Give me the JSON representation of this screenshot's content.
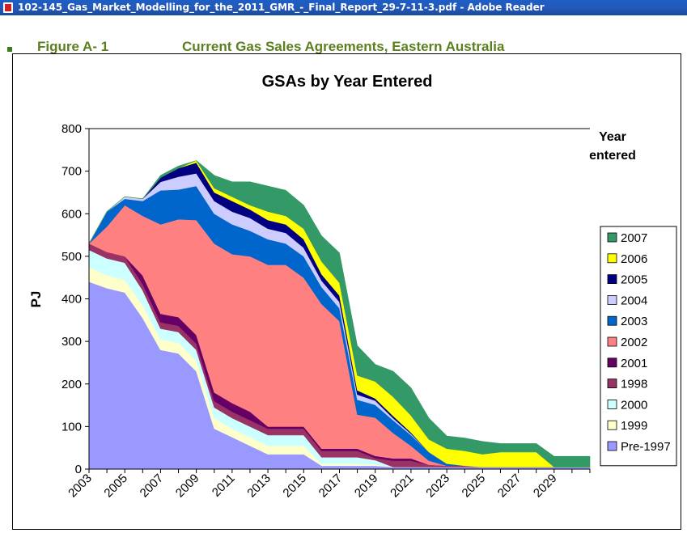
{
  "window": {
    "title": "102-145_Gas_Market_Modelling_for_the_2011_GMR_-_Final_Report_29-7-11-3.pdf - Adobe Reader"
  },
  "document": {
    "figure_label": "Figure A- 1",
    "figure_title": "Current Gas Sales Agreements, Eastern Australia"
  },
  "chart_data": {
    "type": "area",
    "stacked": true,
    "title": "GSAs by Year Entered",
    "ylabel": "PJ",
    "xlabel": "",
    "ylim": [
      0,
      800
    ],
    "yticks": [
      0,
      100,
      200,
      300,
      400,
      500,
      600,
      700,
      800
    ],
    "xticks": [
      "2003",
      "2005",
      "2007",
      "2009",
      "2011",
      "2013",
      "2015",
      "2017",
      "2019",
      "2021",
      "2023",
      "2025",
      "2027",
      "2029"
    ],
    "grid": false,
    "legend_title": "Year entered",
    "legend_position": "right",
    "x": [
      2003,
      2004,
      2005,
      2006,
      2007,
      2008,
      2009,
      2010,
      2011,
      2012,
      2013,
      2014,
      2015,
      2016,
      2017,
      2018,
      2019,
      2020,
      2021,
      2022,
      2023,
      2024,
      2025,
      2026,
      2027,
      2028,
      2029,
      2030,
      2031
    ],
    "series": [
      {
        "name": "Pre-1997",
        "color": "#9999ff",
        "values": [
          440,
          425,
          415,
          355,
          280,
          272,
          230,
          95,
          75,
          55,
          35,
          35,
          35,
          8,
          8,
          8,
          8,
          5,
          5,
          5,
          5,
          5,
          5,
          5,
          5,
          5,
          5,
          5,
          5
        ]
      },
      {
        "name": "1999",
        "color": "#ffffcc",
        "values": [
          35,
          30,
          30,
          30,
          25,
          25,
          25,
          25,
          20,
          20,
          20,
          20,
          20,
          5,
          5,
          5,
          3,
          0,
          0,
          0,
          0,
          0,
          0,
          0,
          0,
          0,
          0,
          0,
          0
        ]
      },
      {
        "name": "2000",
        "color": "#ccffff",
        "values": [
          40,
          40,
          40,
          35,
          25,
          25,
          25,
          25,
          25,
          25,
          25,
          25,
          25,
          15,
          15,
          15,
          10,
          0,
          0,
          0,
          0,
          0,
          0,
          0,
          0,
          0,
          0,
          0,
          0
        ]
      },
      {
        "name": "1998",
        "color": "#993366",
        "values": [
          15,
          15,
          15,
          15,
          15,
          15,
          15,
          15,
          15,
          15,
          15,
          15,
          15,
          15,
          15,
          15,
          5,
          15,
          15,
          5,
          3,
          3,
          0,
          0,
          0,
          0,
          0,
          0,
          0
        ]
      },
      {
        "name": "2001",
        "color": "#660066",
        "values": [
          0,
          0,
          0,
          20,
          20,
          20,
          20,
          20,
          20,
          20,
          5,
          5,
          5,
          5,
          5,
          5,
          5,
          5,
          5,
          0,
          0,
          0,
          0,
          0,
          0,
          0,
          0,
          0,
          0
        ]
      },
      {
        "name": "2002",
        "color": "#ff8080",
        "values": [
          0,
          60,
          120,
          140,
          210,
          230,
          270,
          350,
          350,
          365,
          380,
          380,
          350,
          340,
          300,
          80,
          90,
          60,
          30,
          10,
          0,
          0,
          0,
          0,
          0,
          0,
          0,
          0,
          0
        ]
      },
      {
        "name": "2003",
        "color": "#0066cc",
        "values": [
          0,
          35,
          15,
          35,
          80,
          70,
          80,
          70,
          70,
          60,
          60,
          50,
          50,
          40,
          30,
          35,
          30,
          30,
          25,
          20,
          5,
          0,
          0,
          0,
          0,
          0,
          0,
          0,
          0
        ]
      },
      {
        "name": "2004",
        "color": "#ccccff",
        "values": [
          0,
          0,
          5,
          5,
          20,
          30,
          30,
          30,
          30,
          30,
          25,
          25,
          20,
          15,
          15,
          12,
          10,
          5,
          3,
          0,
          0,
          0,
          0,
          0,
          0,
          0,
          0,
          0,
          0
        ]
      },
      {
        "name": "2005",
        "color": "#000080",
        "values": [
          0,
          0,
          0,
          0,
          10,
          20,
          25,
          20,
          25,
          20,
          20,
          20,
          20,
          15,
          15,
          10,
          5,
          5,
          3,
          0,
          0,
          0,
          0,
          0,
          0,
          0,
          0,
          0,
          0
        ]
      },
      {
        "name": "2006",
        "color": "#ffff00",
        "values": [
          0,
          0,
          0,
          0,
          0,
          0,
          5,
          10,
          10,
          10,
          20,
          20,
          25,
          30,
          30,
          35,
          40,
          45,
          40,
          30,
          35,
          35,
          30,
          35,
          35,
          35,
          0,
          0,
          0
        ]
      },
      {
        "name": "2007",
        "color": "#339966",
        "values": [
          0,
          0,
          0,
          0,
          5,
          5,
          0,
          30,
          35,
          55,
          60,
          60,
          55,
          60,
          70,
          70,
          40,
          60,
          65,
          50,
          30,
          30,
          30,
          20,
          20,
          20,
          25,
          25,
          25
        ]
      }
    ]
  }
}
